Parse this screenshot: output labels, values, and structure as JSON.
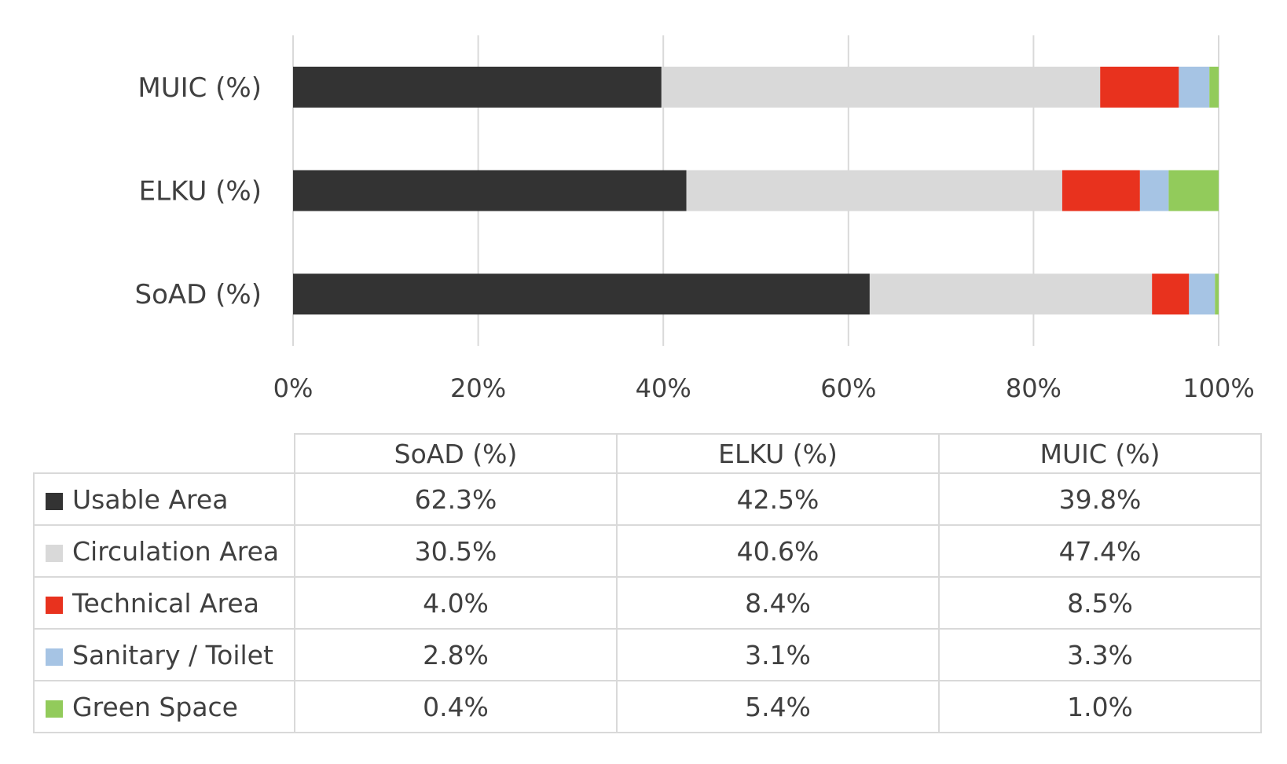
{
  "chart_data": {
    "type": "bar",
    "orientation": "horizontal",
    "stacked": "percent",
    "categories": [
      "SoAD (%)",
      "ELKU (%)",
      "MUIC (%)"
    ],
    "series": [
      {
        "name": "Usable Area",
        "color": "#333333",
        "values": [
          62.3,
          42.5,
          39.8
        ],
        "labels": [
          "62.3%",
          "42.5%",
          "39.8%"
        ]
      },
      {
        "name": "Circulation Area",
        "color": "#d9d9d9",
        "values": [
          30.5,
          40.6,
          47.4
        ],
        "labels": [
          "30.5%",
          "40.6%",
          "47.4%"
        ]
      },
      {
        "name": "Technical Area",
        "color": "#e8321e",
        "values": [
          4.0,
          8.4,
          8.5
        ],
        "labels": [
          "4.0%",
          "8.4%",
          "8.5%"
        ]
      },
      {
        "name": "Sanitary / Toilet",
        "color": "#a6c4e4",
        "values": [
          2.8,
          3.1,
          3.3
        ],
        "labels": [
          "2.8%",
          "3.1%",
          "3.3%"
        ]
      },
      {
        "name": "Green Space",
        "color": "#92cb5b",
        "values": [
          0.4,
          5.4,
          1.0
        ],
        "labels": [
          "0.4%",
          "5.4%",
          "1.0%"
        ]
      }
    ],
    "xlim": [
      0,
      100
    ],
    "x_ticks": [
      "0%",
      "20%",
      "40%",
      "60%",
      "80%",
      "100%"
    ],
    "grid": "vertical",
    "legend": "data-table-below"
  }
}
